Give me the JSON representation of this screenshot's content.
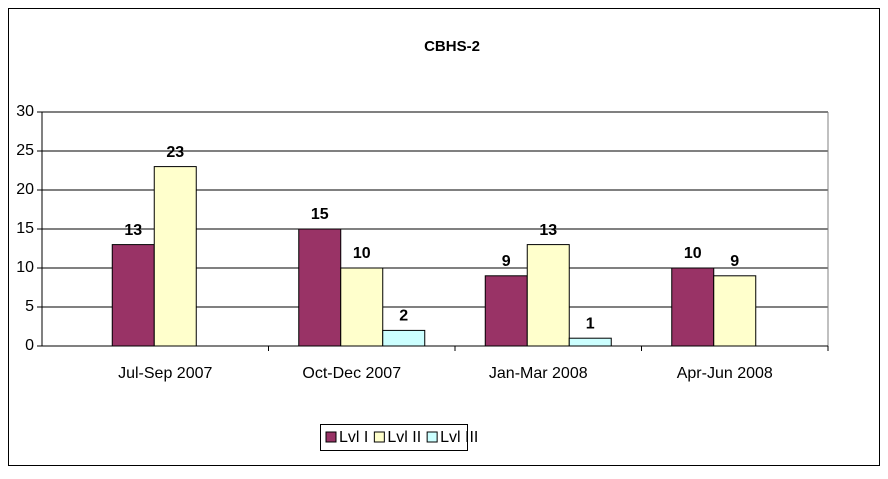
{
  "chart_data": {
    "type": "bar",
    "title": "CBHS-2",
    "categories": [
      "Jul-Sep 2007",
      "Oct-Dec 2007",
      "Jan-Mar 2008",
      "Apr-Jun 2008"
    ],
    "series": [
      {
        "name": "Lvl I",
        "color": "#993366",
        "values": [
          13,
          15,
          9,
          10
        ]
      },
      {
        "name": "Lvl II",
        "color": "#ffffcc",
        "values": [
          23,
          10,
          13,
          9
        ]
      },
      {
        "name": "Lvl III",
        "color": "#ccffff",
        "values": [
          null,
          2,
          1,
          null
        ]
      }
    ],
    "ylim": [
      0,
      30
    ],
    "yticks": [
      0,
      5,
      10,
      15,
      20,
      25,
      30
    ],
    "grid": true,
    "legend": "bottom"
  }
}
